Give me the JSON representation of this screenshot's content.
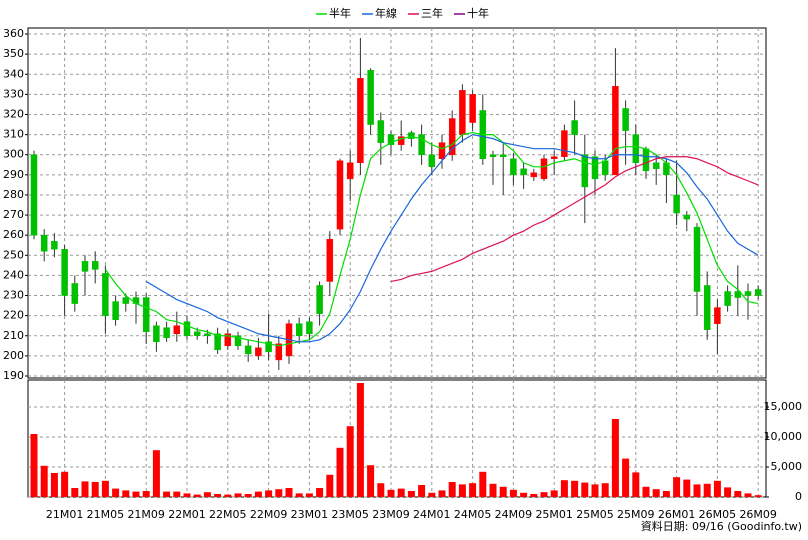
{
  "chart_data": [
    {
      "type": "candlestick",
      "categories": [
        null,
        null,
        null,
        "21M01",
        null,
        null,
        null,
        "21M05",
        null,
        null,
        null,
        "21M09",
        null,
        null,
        null,
        "22M01",
        null,
        null,
        null,
        "22M05",
        null,
        null,
        null,
        "22M09",
        null,
        null,
        null,
        "23M01",
        null,
        null,
        null,
        "23M05",
        null,
        null,
        null,
        "23M09",
        null,
        null,
        null,
        "24M01",
        null,
        null,
        null,
        "24M05",
        null,
        null,
        null,
        "24M09",
        null,
        null,
        null,
        "25M01",
        null,
        null,
        null,
        "25M05",
        null,
        null,
        null,
        "25M09",
        null,
        null,
        null,
        "26M01",
        null,
        null,
        null,
        "26M05",
        null,
        null,
        null,
        "26M09"
      ],
      "open": [
        300,
        260,
        257,
        253,
        236,
        247,
        247,
        241,
        227,
        229,
        229,
        229,
        215,
        214,
        211,
        217,
        212,
        211,
        211,
        205,
        210,
        205,
        200,
        207,
        198,
        200,
        216,
        217,
        235,
        237,
        263,
        288,
        296,
        342,
        317,
        310,
        305,
        311,
        310,
        300,
        298,
        300,
        310,
        316,
        322,
        300,
        300,
        298,
        293,
        289,
        288,
        298,
        299,
        317,
        300,
        299,
        297,
        290,
        323,
        310,
        303,
        296,
        296,
        280,
        270,
        264,
        235,
        216,
        232,
        232,
        232,
        233
      ],
      "high": [
        302,
        263,
        261,
        255,
        240,
        250,
        252,
        245,
        230,
        231,
        232,
        231,
        217,
        217,
        222,
        220,
        214,
        213,
        214,
        213,
        212,
        208,
        209,
        221,
        210,
        218,
        219,
        219,
        237,
        262,
        298,
        302,
        358,
        343,
        321,
        312,
        317,
        312,
        315,
        306,
        310,
        322,
        335,
        332,
        330,
        302,
        306,
        301,
        296,
        293,
        300,
        302,
        315,
        327,
        310,
        302,
        300,
        353,
        327,
        315,
        304,
        300,
        298,
        297,
        272,
        266,
        242,
        228,
        235,
        245,
        236,
        235
      ],
      "low": [
        258,
        247,
        249,
        220,
        222,
        230,
        236,
        211,
        215,
        222,
        216,
        206,
        202,
        207,
        207,
        208,
        208,
        206,
        201,
        203,
        203,
        197,
        198,
        198,
        193,
        196,
        206,
        208,
        215,
        230,
        260,
        277,
        290,
        310,
        295,
        300,
        302,
        304,
        295,
        290,
        293,
        297,
        306,
        312,
        295,
        285,
        280,
        285,
        283,
        287,
        287,
        290,
        297,
        300,
        266,
        280,
        287,
        290,
        295,
        290,
        288,
        285,
        276,
        265,
        262,
        220,
        208,
        201,
        222,
        220,
        218,
        228
      ],
      "close": [
        260,
        252,
        253,
        230,
        226,
        242,
        243,
        220,
        218,
        226,
        226,
        212,
        207,
        209,
        215,
        210,
        210,
        210,
        203,
        211,
        205,
        201,
        204,
        202,
        206,
        216,
        210,
        211,
        221,
        258,
        297,
        296,
        338,
        315,
        306,
        305,
        309,
        308,
        300,
        294,
        306,
        318,
        332,
        330,
        298,
        299,
        299,
        290,
        290,
        291,
        298,
        299,
        312,
        310,
        284,
        288,
        290,
        334,
        312,
        296,
        292,
        293,
        290,
        271,
        268,
        232,
        213,
        224,
        225,
        229,
        230,
        230
      ],
      "up_color": "#ff0000",
      "down_color": "#00c000",
      "series": [
        {
          "name": "半年",
          "color": "#00dd00",
          "values": [
            null,
            null,
            null,
            null,
            null,
            null,
            null,
            243,
            236,
            230,
            226,
            224,
            222,
            218,
            217,
            215,
            213,
            212,
            210,
            210,
            209,
            208,
            207,
            206,
            205,
            206,
            207,
            208,
            212,
            221,
            240,
            258,
            280,
            298,
            303,
            306,
            308,
            309,
            308,
            305,
            303,
            305,
            310,
            311,
            310,
            310,
            306,
            302,
            296,
            294,
            294,
            296,
            297,
            298,
            296,
            295,
            297,
            303,
            304,
            304,
            303,
            300,
            296,
            290,
            281,
            271,
            258,
            245,
            237,
            233,
            227,
            226
          ]
        },
        {
          "name": "年線",
          "color": "#1a66dd",
          "values": [
            null,
            null,
            null,
            null,
            null,
            null,
            null,
            null,
            null,
            null,
            null,
            237,
            234,
            231,
            228,
            226,
            224,
            222,
            219,
            217,
            215,
            213,
            211,
            210,
            209,
            208,
            207,
            207,
            208,
            211,
            216,
            223,
            232,
            243,
            253,
            262,
            270,
            278,
            285,
            291,
            297,
            303,
            307,
            310,
            309,
            308,
            306,
            305,
            304,
            303,
            303,
            303,
            302,
            301,
            299,
            298,
            298,
            300,
            300,
            300,
            299,
            299,
            298,
            296,
            291,
            284,
            278,
            270,
            262,
            256,
            253,
            250
          ]
        },
        {
          "name": "三年",
          "color": "#dd1155",
          "values": [
            null,
            null,
            null,
            null,
            null,
            null,
            null,
            null,
            null,
            null,
            null,
            null,
            null,
            null,
            null,
            null,
            null,
            null,
            null,
            null,
            null,
            null,
            null,
            null,
            null,
            null,
            null,
            null,
            null,
            null,
            null,
            null,
            null,
            null,
            null,
            237,
            238,
            240,
            241,
            242,
            244,
            246,
            248,
            251,
            253,
            255,
            257,
            260,
            262,
            265,
            267,
            270,
            273,
            276,
            279,
            282,
            285,
            289,
            292,
            294,
            296,
            298,
            299,
            299,
            299,
            298,
            296,
            294,
            291,
            289,
            287,
            285
          ]
        },
        {
          "name": "十年",
          "color": "#880088",
          "values": [
            null,
            null,
            null,
            null,
            null,
            null,
            null,
            null,
            null,
            null,
            null,
            null,
            null,
            null,
            null,
            null,
            null,
            null,
            null,
            null,
            null,
            null,
            null,
            null,
            null,
            null,
            null,
            null,
            null,
            null,
            null,
            null,
            null,
            null,
            null,
            null,
            null,
            null,
            null,
            null,
            null,
            null,
            null,
            null,
            null,
            null,
            null,
            null,
            null,
            null,
            null,
            null,
            null,
            null,
            null,
            null,
            null,
            null,
            null,
            null,
            null,
            null,
            null,
            null,
            null,
            null,
            null,
            null,
            null,
            null,
            null,
            null
          ]
        }
      ],
      "ylim": [
        189,
        363
      ],
      "yticks": [
        190,
        200,
        210,
        220,
        230,
        240,
        250,
        260,
        270,
        280,
        290,
        300,
        310,
        320,
        330,
        340,
        350,
        360
      ],
      "grid": true
    },
    {
      "type": "bar",
      "values": [
        10500,
        5200,
        4000,
        4200,
        1500,
        2600,
        2500,
        2700,
        1400,
        1100,
        900,
        1000,
        7800,
        900,
        900,
        600,
        400,
        800,
        500,
        400,
        600,
        500,
        900,
        1100,
        1300,
        1500,
        600,
        600,
        1500,
        3700,
        8200,
        11800,
        19000,
        5300,
        2300,
        1200,
        1400,
        1000,
        2000,
        700,
        1100,
        2500,
        2100,
        2300,
        4200,
        2200,
        1700,
        1200,
        700,
        500,
        800,
        1100,
        2800,
        2700,
        2400,
        2100,
        2300,
        13000,
        6400,
        4100,
        1700,
        1300,
        1000,
        3300,
        2900,
        2100,
        2200,
        2700,
        1600,
        1000,
        600,
        300
      ],
      "color": "#ff0000",
      "ylim": [
        0,
        19500
      ],
      "yticks": [
        0,
        {
          "value": 5000,
          "label": "5,000"
        },
        {
          "value": 10000,
          "label": "10,000"
        },
        {
          "value": 15000,
          "label": "15,000"
        }
      ],
      "grid": true
    }
  ],
  "footer": "資料日期: 09/16 (Goodinfo.tw)"
}
